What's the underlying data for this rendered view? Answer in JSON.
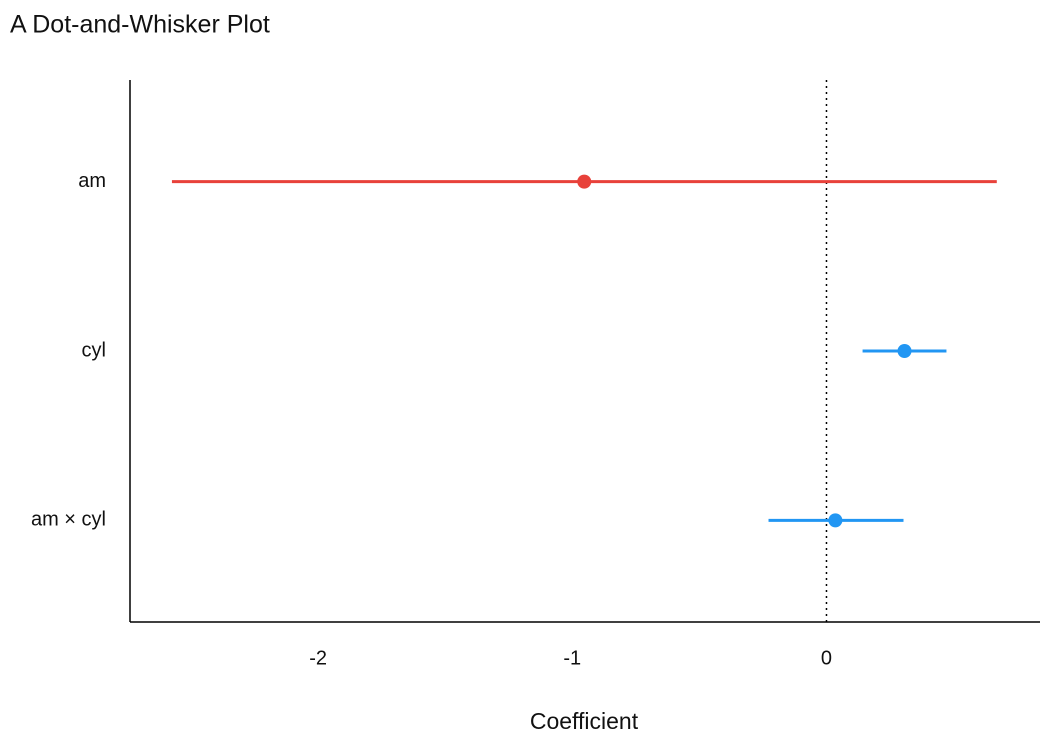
{
  "chart_data": {
    "type": "dotwhisker",
    "title": "A Dot-and-Whisker Plot",
    "x_label": "Coefficient",
    "categories": [
      "am",
      "cyl",
      "am × cyl"
    ],
    "values": [
      -0.953,
      0.307,
      0.035
    ],
    "ci_low": [
      -2.575,
      0.142,
      -0.228
    ],
    "ci_high": [
      0.67,
      0.472,
      0.303
    ],
    "colors": [
      "#e8413a",
      "#2196f3",
      "#2196f3"
    ],
    "xlim": [
      -2.74,
      0.84
    ],
    "xticks": [
      -2,
      -1,
      0
    ],
    "ref_line": 0
  }
}
